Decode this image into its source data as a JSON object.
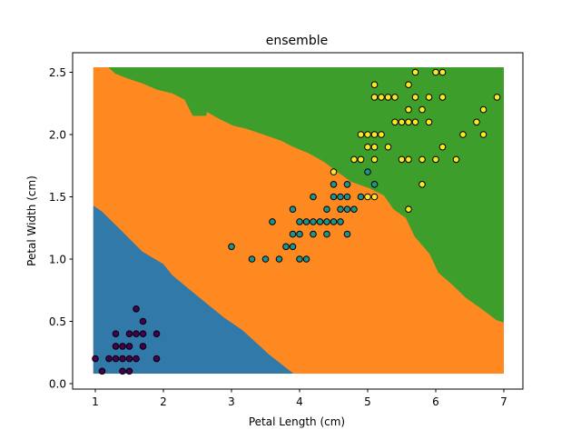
{
  "chart_data": {
    "type": "scatter",
    "title": "ensemble",
    "xlabel": "Petal Length (cm)",
    "ylabel": "Petal Width (cm)",
    "xlim": [
      0.7,
      7.3
    ],
    "ylim": [
      -0.04,
      2.66
    ],
    "xticks": [
      1,
      2,
      3,
      4,
      5,
      6,
      7
    ],
    "xtick_labels": [
      "1",
      "2",
      "3",
      "4",
      "5",
      "6",
      "7"
    ],
    "yticks": [
      0.0,
      0.5,
      1.0,
      1.5,
      2.0,
      2.5
    ],
    "ytick_labels": [
      "0.0",
      "0.5",
      "1.0",
      "1.5",
      "2.0",
      "2.5"
    ],
    "grid": false,
    "decision_regions": {
      "extent": {
        "x": [
          0.97,
          7.0
        ],
        "y": [
          0.08,
          2.54
        ]
      },
      "colors": {
        "class_0": "#1f77b4",
        "class_1": "#ff7f0e",
        "class_2": "#2ca02c"
      },
      "boundary_0_1": [
        [
          0.97,
          1.43
        ],
        [
          1.1,
          1.38
        ],
        [
          1.38,
          1.23
        ],
        [
          1.69,
          1.06
        ],
        [
          2.0,
          0.96
        ],
        [
          2.13,
          0.87
        ],
        [
          2.53,
          0.69
        ],
        [
          2.89,
          0.53
        ],
        [
          3.16,
          0.43
        ],
        [
          3.56,
          0.23
        ],
        [
          3.91,
          0.08
        ]
      ],
      "boundary_1_2": [
        [
          1.19,
          2.54
        ],
        [
          1.29,
          2.49
        ],
        [
          1.47,
          2.45
        ],
        [
          1.69,
          2.41
        ],
        [
          1.91,
          2.36
        ],
        [
          2.13,
          2.33
        ],
        [
          2.31,
          2.28
        ],
        [
          2.43,
          2.15
        ],
        [
          2.63,
          2.15
        ],
        [
          2.64,
          2.18
        ],
        [
          2.84,
          2.12
        ],
        [
          3.03,
          2.07
        ],
        [
          3.2,
          2.05
        ],
        [
          3.47,
          2.0
        ],
        [
          3.73,
          1.95
        ],
        [
          3.91,
          1.9
        ],
        [
          4.13,
          1.85
        ],
        [
          4.36,
          1.78
        ],
        [
          4.53,
          1.71
        ],
        [
          4.76,
          1.62
        ],
        [
          5.02,
          1.57
        ],
        [
          5.24,
          1.51
        ],
        [
          5.38,
          1.4
        ],
        [
          5.56,
          1.33
        ],
        [
          5.69,
          1.18
        ],
        [
          5.91,
          1.04
        ],
        [
          6.04,
          0.89
        ],
        [
          6.23,
          0.8
        ],
        [
          6.44,
          0.69
        ],
        [
          6.67,
          0.6
        ],
        [
          6.89,
          0.51
        ],
        [
          7.0,
          0.49
        ]
      ]
    },
    "series": [
      {
        "color": "#440154",
        "points": [
          [
            1.6,
            0.6
          ],
          [
            1.7,
            0.5
          ],
          [
            1.3,
            0.4
          ],
          [
            1.5,
            0.4
          ],
          [
            1.6,
            0.4
          ],
          [
            1.7,
            0.4
          ],
          [
            1.9,
            0.4
          ],
          [
            1.3,
            0.3
          ],
          [
            1.4,
            0.3
          ],
          [
            1.5,
            0.3
          ],
          [
            1.7,
            0.3
          ],
          [
            1.0,
            0.2
          ],
          [
            1.2,
            0.2
          ],
          [
            1.3,
            0.2
          ],
          [
            1.4,
            0.2
          ],
          [
            1.5,
            0.2
          ],
          [
            1.6,
            0.2
          ],
          [
            1.9,
            0.2
          ],
          [
            1.1,
            0.1
          ],
          [
            1.4,
            0.1
          ],
          [
            1.5,
            0.1
          ]
        ]
      },
      {
        "color": "#21918c",
        "points": [
          [
            5.0,
            1.7
          ],
          [
            4.5,
            1.6
          ],
          [
            4.7,
            1.6
          ],
          [
            5.1,
            1.6
          ],
          [
            4.2,
            1.5
          ],
          [
            4.5,
            1.5
          ],
          [
            4.6,
            1.5
          ],
          [
            4.7,
            1.5
          ],
          [
            4.9,
            1.5
          ],
          [
            3.9,
            1.4
          ],
          [
            4.4,
            1.4
          ],
          [
            4.6,
            1.4
          ],
          [
            4.7,
            1.4
          ],
          [
            4.8,
            1.4
          ],
          [
            3.6,
            1.3
          ],
          [
            4.0,
            1.3
          ],
          [
            4.1,
            1.3
          ],
          [
            4.2,
            1.3
          ],
          [
            4.3,
            1.3
          ],
          [
            4.4,
            1.3
          ],
          [
            4.5,
            1.3
          ],
          [
            4.6,
            1.3
          ],
          [
            3.9,
            1.2
          ],
          [
            4.0,
            1.2
          ],
          [
            4.2,
            1.2
          ],
          [
            4.4,
            1.2
          ],
          [
            4.7,
            1.2
          ],
          [
            3.0,
            1.1
          ],
          [
            3.8,
            1.1
          ],
          [
            3.9,
            1.1
          ],
          [
            3.3,
            1.0
          ],
          [
            3.5,
            1.0
          ],
          [
            3.7,
            1.0
          ],
          [
            4.0,
            1.0
          ],
          [
            4.1,
            1.0
          ]
        ]
      },
      {
        "color": "#fde725",
        "points": [
          [
            5.7,
            2.5
          ],
          [
            6.0,
            2.5
          ],
          [
            6.1,
            2.5
          ],
          [
            5.1,
            2.4
          ],
          [
            5.6,
            2.4
          ],
          [
            5.1,
            2.3
          ],
          [
            5.2,
            2.3
          ],
          [
            5.3,
            2.3
          ],
          [
            5.4,
            2.3
          ],
          [
            5.7,
            2.3
          ],
          [
            5.9,
            2.3
          ],
          [
            6.1,
            2.3
          ],
          [
            6.9,
            2.3
          ],
          [
            5.6,
            2.2
          ],
          [
            5.8,
            2.2
          ],
          [
            6.7,
            2.2
          ],
          [
            5.4,
            2.1
          ],
          [
            5.5,
            2.1
          ],
          [
            5.6,
            2.1
          ],
          [
            5.7,
            2.1
          ],
          [
            5.9,
            2.1
          ],
          [
            6.6,
            2.1
          ],
          [
            4.9,
            2.0
          ],
          [
            5.0,
            2.0
          ],
          [
            5.1,
            2.0
          ],
          [
            5.2,
            2.0
          ],
          [
            6.4,
            2.0
          ],
          [
            6.7,
            2.0
          ],
          [
            5.0,
            1.9
          ],
          [
            5.1,
            1.9
          ],
          [
            5.3,
            1.9
          ],
          [
            6.1,
            1.9
          ],
          [
            4.8,
            1.8
          ],
          [
            4.9,
            1.8
          ],
          [
            5.1,
            1.8
          ],
          [
            5.5,
            1.8
          ],
          [
            5.6,
            1.8
          ],
          [
            5.8,
            1.8
          ],
          [
            6.0,
            1.8
          ],
          [
            6.3,
            1.8
          ],
          [
            4.5,
            1.7
          ],
          [
            5.8,
            1.6
          ],
          [
            5.0,
            1.5
          ],
          [
            5.1,
            1.5
          ],
          [
            5.6,
            1.4
          ]
        ]
      }
    ]
  }
}
